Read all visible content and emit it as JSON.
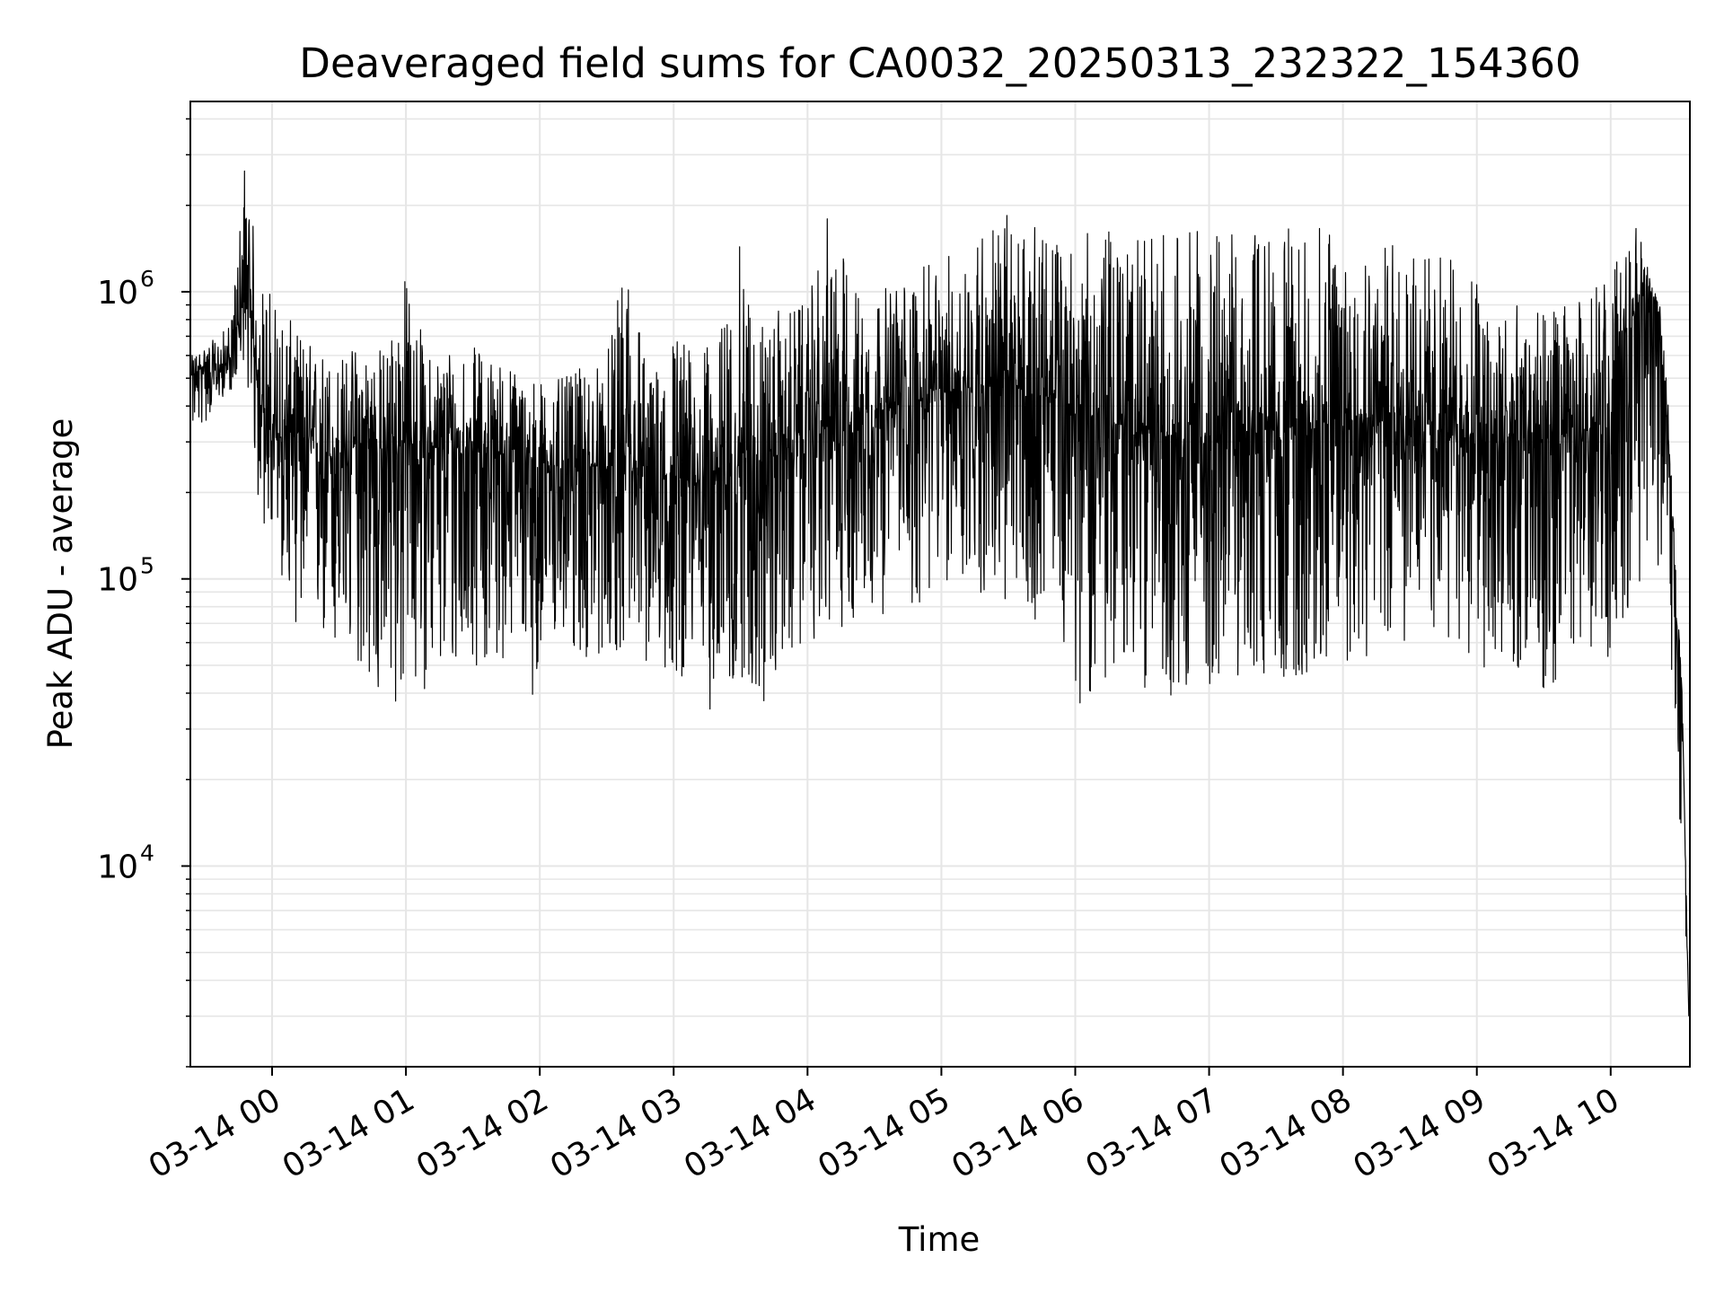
{
  "chart_data": {
    "type": "line",
    "title": "Deaveraged field sums for CA0032_20250313_232322_154360",
    "xlabel": "Time",
    "ylabel": "Peak ADU - average",
    "yscale": "log",
    "ylim": [
      2000,
      4600000
    ],
    "xlim": [
      "2025-03-13T23:23:22",
      "2025-03-14T10:35:30"
    ],
    "grid": true,
    "grid_which": "both",
    "line_color": "#000000",
    "x_ticks": [
      {
        "value": "2025-03-14T00:00:00",
        "label": "03-14 00"
      },
      {
        "value": "2025-03-14T01:00:00",
        "label": "03-14 01"
      },
      {
        "value": "2025-03-14T02:00:00",
        "label": "03-14 02"
      },
      {
        "value": "2025-03-14T03:00:00",
        "label": "03-14 03"
      },
      {
        "value": "2025-03-14T04:00:00",
        "label": "03-14 04"
      },
      {
        "value": "2025-03-14T05:00:00",
        "label": "03-14 05"
      },
      {
        "value": "2025-03-14T06:00:00",
        "label": "03-14 06"
      },
      {
        "value": "2025-03-14T07:00:00",
        "label": "03-14 07"
      },
      {
        "value": "2025-03-14T08:00:00",
        "label": "03-14 08"
      },
      {
        "value": "2025-03-14T09:00:00",
        "label": "03-14 09"
      },
      {
        "value": "2025-03-14T10:00:00",
        "label": "03-14 10"
      }
    ],
    "y_ticks": [
      {
        "value": 10000,
        "base": "10",
        "exp": "4"
      },
      {
        "value": 100000,
        "base": "10",
        "exp": "5"
      },
      {
        "value": 1000000,
        "base": "10",
        "exp": "6"
      }
    ],
    "series": [
      {
        "x": [
          "2025-03-13T23:24:00",
          "2025-03-13T23:30:00",
          "2025-03-13T23:36:00",
          "2025-03-13T23:42:00",
          "2025-03-13T23:48:00",
          "2025-03-13T23:54:00",
          "2025-03-14T00:00:00",
          "2025-03-14T00:10:00",
          "2025-03-14T00:20:00",
          "2025-03-14T00:30:00",
          "2025-03-14T00:40:00",
          "2025-03-14T00:50:00",
          "2025-03-14T01:00:00",
          "2025-03-14T01:10:00",
          "2025-03-14T01:20:00",
          "2025-03-14T01:30:00",
          "2025-03-14T01:40:00",
          "2025-03-14T01:50:00",
          "2025-03-14T02:00:00",
          "2025-03-14T02:10:00",
          "2025-03-14T02:20:00",
          "2025-03-14T02:30:00",
          "2025-03-14T02:40:00",
          "2025-03-14T02:50:00",
          "2025-03-14T03:00:00",
          "2025-03-14T03:10:00",
          "2025-03-14T03:20:00",
          "2025-03-14T03:30:00",
          "2025-03-14T03:40:00",
          "2025-03-14T03:50:00",
          "2025-03-14T04:00:00",
          "2025-03-14T04:10:00",
          "2025-03-14T04:20:00",
          "2025-03-14T04:30:00",
          "2025-03-14T04:40:00",
          "2025-03-14T04:50:00",
          "2025-03-14T05:00:00",
          "2025-03-14T05:10:00",
          "2025-03-14T05:20:00",
          "2025-03-14T05:30:00",
          "2025-03-14T05:40:00",
          "2025-03-14T05:50:00",
          "2025-03-14T06:00:00",
          "2025-03-14T06:10:00",
          "2025-03-14T06:20:00",
          "2025-03-14T06:30:00",
          "2025-03-14T06:40:00",
          "2025-03-14T06:50:00",
          "2025-03-14T07:00:00",
          "2025-03-14T07:10:00",
          "2025-03-14T07:20:00",
          "2025-03-14T07:30:00",
          "2025-03-14T07:40:00",
          "2025-03-14T07:50:00",
          "2025-03-14T08:00:00",
          "2025-03-14T08:10:00",
          "2025-03-14T08:20:00",
          "2025-03-14T08:30:00",
          "2025-03-14T08:40:00",
          "2025-03-14T08:50:00",
          "2025-03-14T09:00:00",
          "2025-03-14T09:10:00",
          "2025-03-14T09:20:00",
          "2025-03-14T09:30:00",
          "2025-03-14T09:40:00",
          "2025-03-14T09:50:00",
          "2025-03-14T10:00:00",
          "2025-03-14T10:06:00",
          "2025-03-14T10:12:00",
          "2025-03-14T10:18:00",
          "2025-03-14T10:22:00",
          "2025-03-14T10:26:00",
          "2025-03-14T10:29:00",
          "2025-03-14T10:32:00",
          "2025-03-14T10:35:00"
        ],
        "y_low": [
          330000,
          340000,
          420000,
          450000,
          600000,
          160000,
          130000,
          70000,
          60000,
          45000,
          48000,
          29000,
          36000,
          42000,
          40000,
          50000,
          47000,
          60000,
          32000,
          60000,
          48000,
          55000,
          54000,
          48000,
          42000,
          50000,
          28000,
          45000,
          33000,
          48000,
          60000,
          62000,
          68000,
          72000,
          80000,
          75000,
          95000,
          90000,
          85000,
          70000,
          66000,
          100000,
          36000,
          40000,
          44000,
          42000,
          40000,
          37000,
          40000,
          46000,
          42000,
          44000,
          44000,
          45000,
          50000,
          52000,
          55000,
          58000,
          60000,
          56000,
          50000,
          48000,
          44000,
          38000,
          40000,
          45000,
          55000,
          70000,
          90000,
          100000,
          110000,
          60000,
          30000,
          10000,
          3000
        ],
        "y_mid": [
          500000,
          560000,
          520000,
          600000,
          1000000,
          500000,
          300000,
          330000,
          280000,
          260000,
          300000,
          280000,
          300000,
          290000,
          280000,
          300000,
          280000,
          260000,
          240000,
          250000,
          250000,
          240000,
          230000,
          220000,
          220000,
          220000,
          240000,
          250000,
          260000,
          280000,
          330000,
          340000,
          360000,
          380000,
          400000,
          420000,
          450000,
          460000,
          470000,
          480000,
          440000,
          430000,
          380000,
          360000,
          340000,
          320000,
          320000,
          300000,
          310000,
          320000,
          330000,
          330000,
          340000,
          350000,
          360000,
          380000,
          380000,
          360000,
          340000,
          320000,
          300000,
          300000,
          300000,
          300000,
          320000,
          330000,
          400000,
          600000,
          900000,
          1000000,
          800000,
          300000,
          110000,
          40000,
          3000
        ],
        "y_high": [
          600000,
          650000,
          700000,
          800000,
          3300000,
          1100000,
          1050000,
          750000,
          650000,
          600000,
          700000,
          650000,
          1200000,
          600000,
          700000,
          650000,
          600000,
          550000,
          500000,
          500000,
          550000,
          600000,
          1500000,
          500000,
          800000,
          600000,
          700000,
          1500000,
          800000,
          900000,
          900000,
          2000000,
          1100000,
          1000000,
          1100000,
          1200000,
          1300000,
          1500000,
          1800000,
          1900000,
          1700000,
          1600000,
          1500000,
          1700000,
          1600000,
          1550000,
          1700000,
          1700000,
          1600000,
          1650000,
          1700000,
          1650000,
          1700000,
          1700000,
          1750000,
          1800000,
          1500000,
          1450000,
          1400000,
          1300000,
          1200000,
          1000000,
          900000,
          850000,
          900000,
          1000000,
          1300000,
          1400000,
          1700000,
          1100000,
          900000,
          400000,
          120000,
          40000,
          3000
        ]
      }
    ]
  }
}
